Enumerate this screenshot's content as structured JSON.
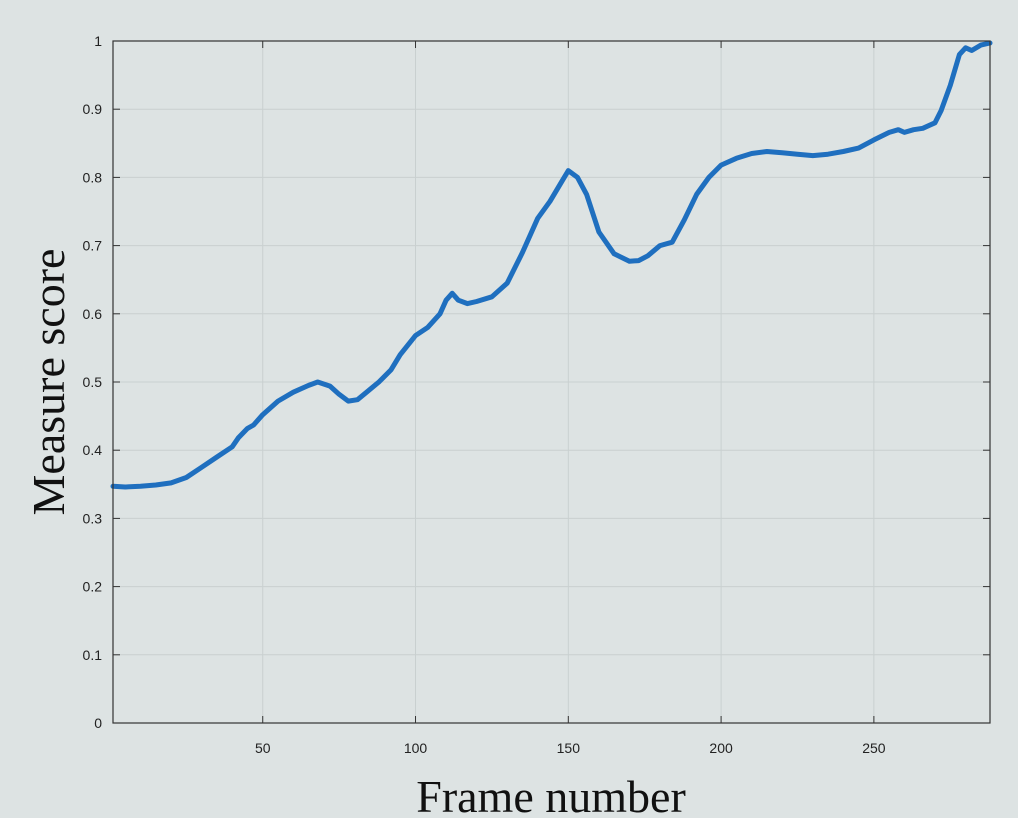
{
  "chart_data": {
    "type": "line",
    "title": "",
    "xlabel": "Frame number",
    "ylabel": "Measure score",
    "xlim": [
      1,
      288
    ],
    "ylim": [
      0,
      1
    ],
    "x_ticks": [
      50,
      100,
      150,
      200,
      250
    ],
    "y_ticks": [
      0,
      0.1,
      0.2,
      0.3,
      0.4,
      0.5,
      0.6,
      0.7,
      0.8,
      0.9,
      1
    ],
    "y_tick_labels": [
      "0",
      "0.1",
      "0.2",
      "0.3",
      "0.4",
      "0.5",
      "0.6",
      "0.7",
      "0.8",
      "0.9",
      "1"
    ],
    "grid": true,
    "legend": "none",
    "line_color": "#1f6fbf",
    "series": [
      {
        "x": [
          1,
          5,
          10,
          15,
          20,
          25,
          30,
          35,
          40,
          42,
          45,
          47,
          50,
          55,
          60,
          65,
          68,
          72,
          75,
          78,
          81,
          84,
          88,
          92,
          95,
          100,
          104,
          108,
          110,
          112,
          114,
          117,
          120,
          125,
          130,
          135,
          140,
          144,
          148,
          150,
          153,
          156,
          160,
          165,
          170,
          173,
          176,
          180,
          184,
          188,
          192,
          196,
          200,
          205,
          210,
          215,
          220,
          225,
          230,
          235,
          240,
          245,
          250,
          255,
          258,
          260,
          263,
          266,
          270,
          272,
          275,
          278,
          280,
          282,
          285,
          288
        ],
        "y": [
          0.347,
          0.346,
          0.347,
          0.349,
          0.352,
          0.36,
          0.375,
          0.39,
          0.405,
          0.418,
          0.432,
          0.437,
          0.452,
          0.472,
          0.485,
          0.495,
          0.5,
          0.494,
          0.482,
          0.472,
          0.474,
          0.485,
          0.5,
          0.518,
          0.54,
          0.568,
          0.58,
          0.6,
          0.62,
          0.63,
          0.62,
          0.615,
          0.618,
          0.625,
          0.645,
          0.69,
          0.74,
          0.765,
          0.795,
          0.81,
          0.8,
          0.775,
          0.72,
          0.688,
          0.677,
          0.678,
          0.685,
          0.7,
          0.705,
          0.738,
          0.775,
          0.8,
          0.818,
          0.828,
          0.835,
          0.838,
          0.836,
          0.834,
          0.832,
          0.834,
          0.838,
          0.843,
          0.855,
          0.866,
          0.87,
          0.866,
          0.87,
          0.872,
          0.88,
          0.898,
          0.935,
          0.98,
          0.99,
          0.986,
          0.994,
          0.997
        ]
      }
    ]
  }
}
